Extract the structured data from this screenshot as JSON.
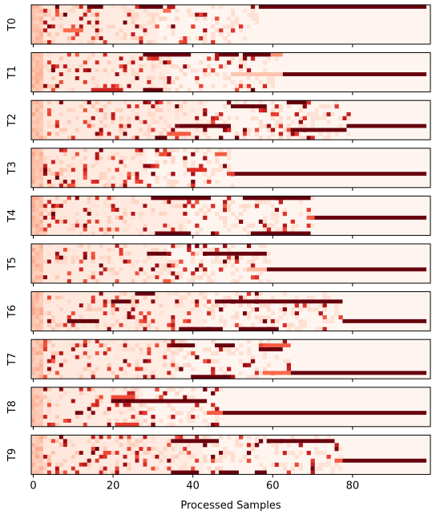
{
  "chart_data": {
    "type": "heatmap",
    "xlabel": "Processed Samples",
    "x_ticks": [
      0,
      20,
      40,
      60,
      80
    ],
    "xlim": [
      0,
      99
    ],
    "colormap": "Reds",
    "colors": {
      "low": "#fff5f0",
      "mid": "#f35a42",
      "high": "#6b010e",
      "frame": "#000000"
    },
    "panels": [
      {
        "label": "T0",
        "active_until": 57,
        "dominant": [
          {
            "row": 0,
            "start": 57,
            "end": 99,
            "level": 1.0
          },
          {
            "row": 0,
            "start": 14,
            "end": 18,
            "level": 1.0
          },
          {
            "row": 0,
            "start": 27,
            "end": 33,
            "level": 1.0
          },
          {
            "row": 1,
            "start": 33,
            "end": 35,
            "level": 0.55
          },
          {
            "row": 6,
            "start": 8,
            "end": 13,
            "level": 0.55
          }
        ]
      },
      {
        "label": "T1",
        "active_until": 62,
        "dominant": [
          {
            "row": 0,
            "start": 28,
            "end": 40,
            "level": 1.0
          },
          {
            "row": 0,
            "start": 47,
            "end": 52,
            "level": 1.0
          },
          {
            "row": 0,
            "start": 53,
            "end": 60,
            "level": 1.0
          },
          {
            "row": 0,
            "start": 60,
            "end": 63,
            "level": 0.45
          },
          {
            "row": 5,
            "start": 63,
            "end": 99,
            "level": 1.0
          },
          {
            "row": 5,
            "start": 50,
            "end": 63,
            "level": 0.3
          },
          {
            "row": 9,
            "start": 15,
            "end": 23,
            "level": 0.8
          },
          {
            "row": 9,
            "start": 28,
            "end": 33,
            "level": 1.0
          }
        ]
      },
      {
        "label": "T2",
        "active_until": 80,
        "dominant": [
          {
            "row": 1,
            "start": 50,
            "end": 59,
            "level": 1.0
          },
          {
            "row": 0,
            "start": 64,
            "end": 69,
            "level": 1.0
          },
          {
            "row": 6,
            "start": 79,
            "end": 99,
            "level": 1.0
          },
          {
            "row": 6,
            "start": 37,
            "end": 50,
            "level": 1.0
          },
          {
            "row": 7,
            "start": 65,
            "end": 79,
            "level": 1.0
          },
          {
            "row": 8,
            "start": 34,
            "end": 40,
            "level": 0.6
          },
          {
            "row": 9,
            "start": 31,
            "end": 34,
            "level": 1.0
          }
        ]
      },
      {
        "label": "T3",
        "active_until": 51,
        "dominant": [
          {
            "row": 1,
            "start": 46,
            "end": 49,
            "level": 0.6
          },
          {
            "row": 5,
            "start": 39,
            "end": 44,
            "level": 0.75
          },
          {
            "row": 6,
            "start": 51,
            "end": 99,
            "level": 1.0
          },
          {
            "row": 6,
            "start": 49,
            "end": 51,
            "level": 0.7
          }
        ]
      },
      {
        "label": "T4",
        "active_until": 71,
        "dominant": [
          {
            "row": 0,
            "start": 30,
            "end": 45,
            "level": 1.0
          },
          {
            "row": 0,
            "start": 53,
            "end": 70,
            "level": 1.0
          },
          {
            "row": 5,
            "start": 70,
            "end": 99,
            "level": 1.0
          },
          {
            "row": 5,
            "start": 69,
            "end": 71,
            "level": 0.6
          },
          {
            "row": 9,
            "start": 31,
            "end": 40,
            "level": 1.0
          },
          {
            "row": 9,
            "start": 55,
            "end": 70,
            "level": 1.0
          }
        ]
      },
      {
        "label": "T5",
        "active_until": 60,
        "dominant": [
          {
            "row": 2,
            "start": 29,
            "end": 34,
            "level": 1.0
          },
          {
            "row": 2,
            "start": 43,
            "end": 59,
            "level": 1.0
          },
          {
            "row": 6,
            "start": 59,
            "end": 99,
            "level": 1.0
          },
          {
            "row": 6,
            "start": 54,
            "end": 59,
            "level": 0.35
          },
          {
            "row": 9,
            "start": 33,
            "end": 35,
            "level": 0.6
          }
        ]
      },
      {
        "label": "T6",
        "active_until": 78,
        "dominant": [
          {
            "row": 0,
            "start": 26,
            "end": 31,
            "level": 1.0
          },
          {
            "row": 2,
            "start": 20,
            "end": 25,
            "level": 1.0
          },
          {
            "row": 2,
            "start": 46,
            "end": 78,
            "level": 1.0
          },
          {
            "row": 7,
            "start": 78,
            "end": 99,
            "level": 1.0
          },
          {
            "row": 7,
            "start": 9,
            "end": 17,
            "level": 1.0
          },
          {
            "row": 9,
            "start": 37,
            "end": 48,
            "level": 1.0
          },
          {
            "row": 9,
            "start": 52,
            "end": 62,
            "level": 1.0
          }
        ]
      },
      {
        "label": "T7",
        "active_until": 65,
        "dominant": [
          {
            "row": 1,
            "start": 36,
            "end": 41,
            "level": 1.0
          },
          {
            "row": 1,
            "start": 46,
            "end": 51,
            "level": 1.0
          },
          {
            "row": 2,
            "start": 57,
            "end": 63,
            "level": 1.0
          },
          {
            "row": 1,
            "start": 58,
            "end": 65,
            "level": 0.6
          },
          {
            "row": 8,
            "start": 65,
            "end": 99,
            "level": 1.0
          },
          {
            "row": 8,
            "start": 58,
            "end": 65,
            "level": 0.55
          },
          {
            "row": 9,
            "start": 40,
            "end": 50,
            "level": 1.0
          }
        ]
      },
      {
        "label": "T8",
        "active_until": 48,
        "dominant": [
          {
            "row": 2,
            "start": 20,
            "end": 26,
            "level": 0.65
          },
          {
            "row": 3,
            "start": 20,
            "end": 44,
            "level": 1.0
          },
          {
            "row": 6,
            "start": 48,
            "end": 99,
            "level": 1.0
          },
          {
            "row": 6,
            "start": 44,
            "end": 48,
            "level": 0.6
          },
          {
            "row": 9,
            "start": 21,
            "end": 27,
            "level": 0.7
          }
        ]
      },
      {
        "label": "T9",
        "active_until": 78,
        "dominant": [
          {
            "row": 1,
            "start": 35,
            "end": 47,
            "level": 1.0
          },
          {
            "row": 1,
            "start": 59,
            "end": 76,
            "level": 1.0
          },
          {
            "row": 6,
            "start": 78,
            "end": 99,
            "level": 1.0
          },
          {
            "row": 6,
            "start": 76,
            "end": 78,
            "level": 0.6
          },
          {
            "row": 9,
            "start": 35,
            "end": 42,
            "level": 1.0
          },
          {
            "row": 9,
            "start": 47,
            "end": 52,
            "level": 1.0
          },
          {
            "row": 9,
            "start": 56,
            "end": 59,
            "level": 1.0
          }
        ]
      }
    ]
  }
}
